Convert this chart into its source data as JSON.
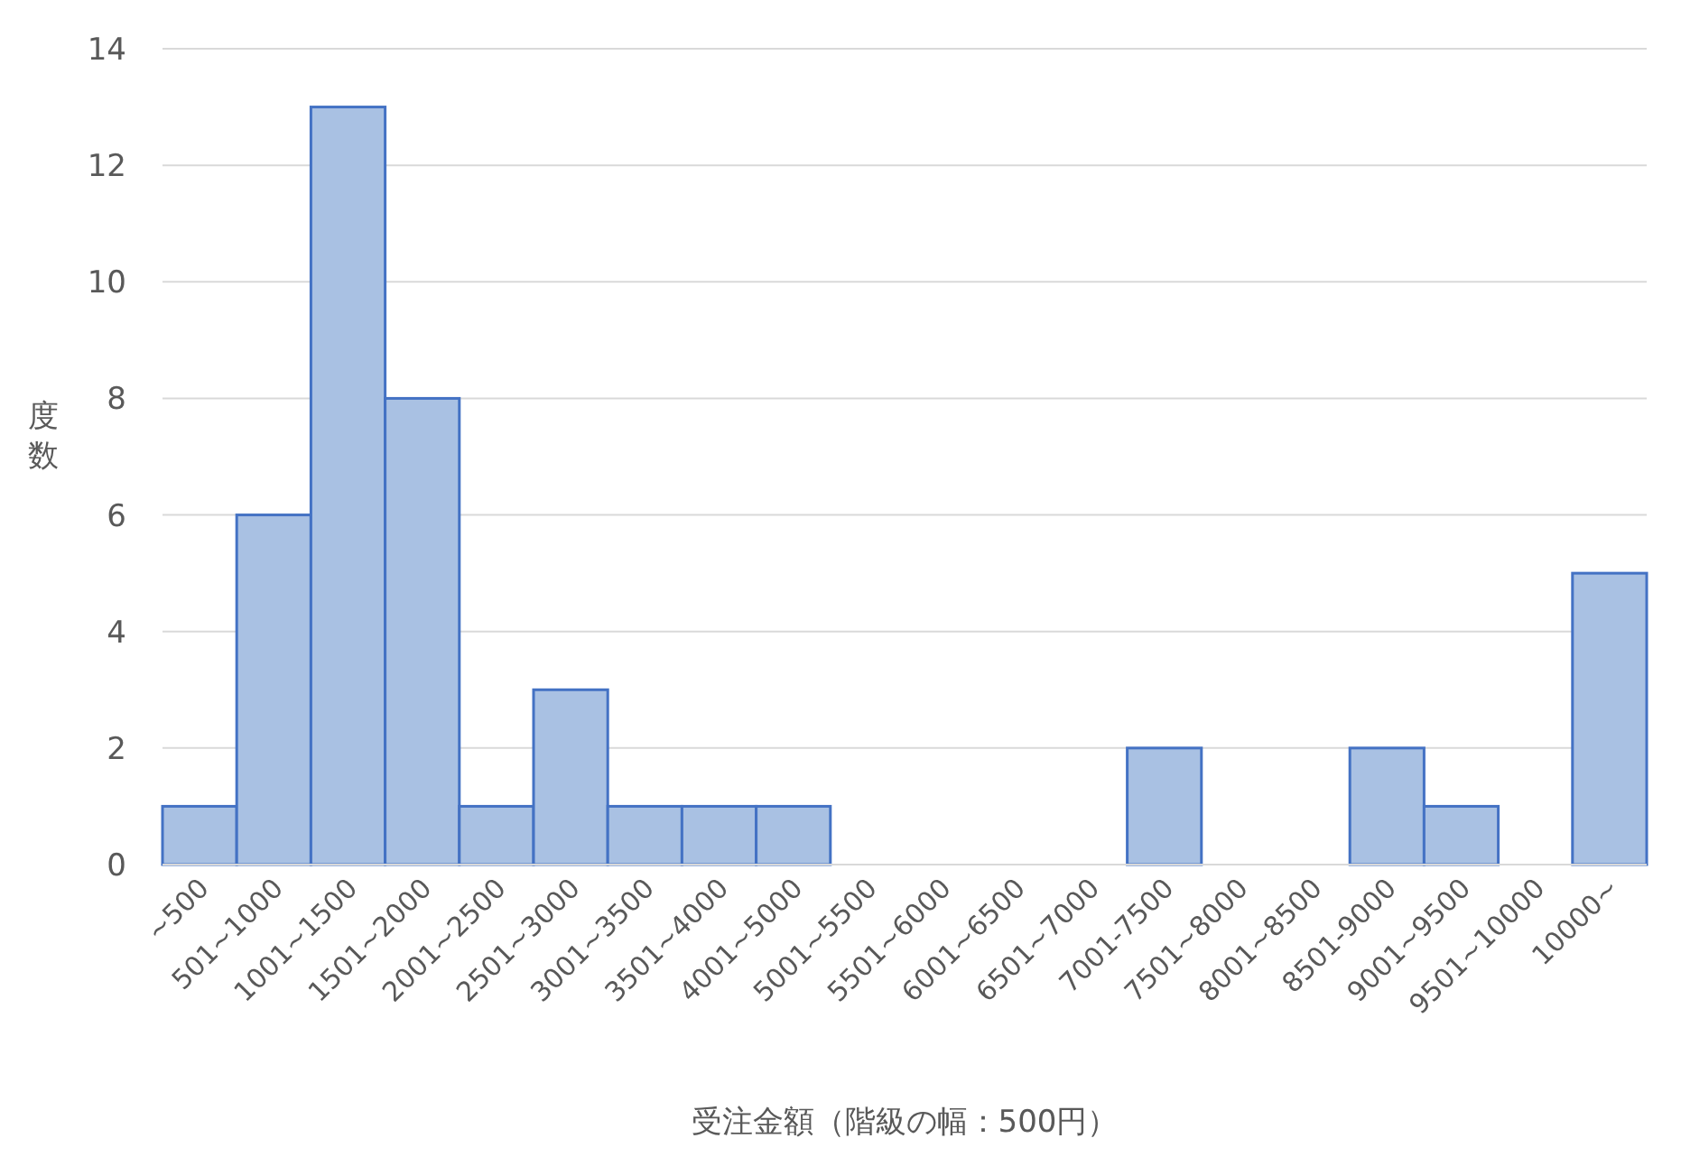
{
  "chart_data": {
    "type": "bar",
    "categories": [
      "~500",
      "501~1000",
      "1001~1500",
      "1501~2000",
      "2001~2500",
      "2501~3000",
      "3001~3500",
      "3501~4000",
      "4001~5000",
      "5001~5500",
      "5501~6000",
      "6001~6500",
      "6501~7000",
      "7001-7500",
      "7501~8000",
      "8001~8500",
      "8501-9000",
      "9001~9500",
      "9501~10000",
      "10000~"
    ],
    "values": [
      1,
      6,
      13,
      8,
      1,
      3,
      1,
      1,
      1,
      0,
      0,
      0,
      0,
      2,
      0,
      0,
      2,
      1,
      0,
      5
    ],
    "color": "#a9c1e3",
    "ylim": [
      0,
      14
    ],
    "yticks": [
      0,
      2,
      4,
      6,
      8,
      10,
      12,
      14
    ],
    "ylabel": "度数",
    "xlabel": "受注金額（階級の幅：500円）",
    "grid": "y"
  }
}
